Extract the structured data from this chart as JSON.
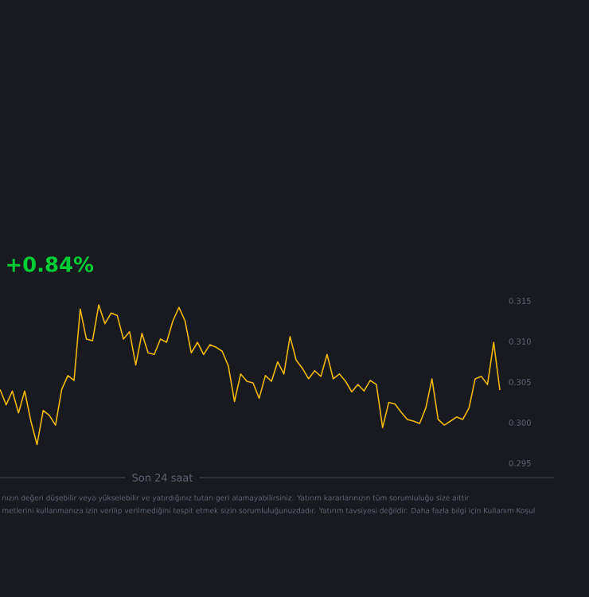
{
  "chart_data": {
    "type": "line",
    "title": "+0.84%",
    "xlabel": "Son 24 saat",
    "annotations": [
      "nızın değeri düşebilir veya yükselebilir ve yatırdığınız tutarı geri alamayabilirsiniz. Yatırım kararlarınızın tüm sorumluluğu size aittir",
      "metlerini kullanmanıza izin verilip verilmediğini tespit etmek sizin sorumluluğunuzdadır. Yatırım tavsiyesi değildir. Daha fazla bilgi için Kullanım Koşul"
    ],
    "categories": [
      null,
      null,
      null,
      null,
      null,
      null,
      null,
      null,
      null,
      null,
      null,
      null,
      null,
      null,
      null,
      null,
      null,
      null,
      null,
      null,
      null,
      null,
      null,
      null,
      null,
      null,
      null,
      null,
      null,
      null,
      null,
      null,
      null,
      null,
      null,
      null,
      null,
      null,
      null,
      null,
      null,
      null,
      null,
      null,
      null,
      null,
      null,
      null,
      null,
      null,
      null,
      null,
      null,
      null,
      null,
      null,
      null,
      null,
      null,
      null,
      null,
      null,
      null,
      null,
      null,
      null,
      null,
      null,
      null,
      null,
      null,
      null,
      null,
      null,
      null,
      null,
      null,
      null,
      null,
      null,
      null,
      null
    ],
    "values": [
      0.3041,
      0.3022,
      0.3039,
      0.3012,
      0.3039,
      0.3002,
      0.2973,
      0.3015,
      0.3009,
      0.2997,
      0.3041,
      0.3058,
      0.3052,
      0.314,
      0.3103,
      0.3101,
      0.3145,
      0.3122,
      0.3135,
      0.3132,
      0.3103,
      0.3112,
      0.3071,
      0.311,
      0.3086,
      0.3084,
      0.3103,
      0.3099,
      0.3125,
      0.3142,
      0.3125,
      0.3086,
      0.3099,
      0.3084,
      0.3096,
      0.3093,
      0.3088,
      0.307,
      0.3026,
      0.306,
      0.3051,
      0.3049,
      0.303,
      0.3058,
      0.3051,
      0.3075,
      0.306,
      0.3106,
      0.3077,
      0.3067,
      0.3054,
      0.3064,
      0.3057,
      0.3084,
      0.3054,
      0.306,
      0.3051,
      0.3038,
      0.3047,
      0.3039,
      0.3052,
      0.3047,
      0.2994,
      0.3025,
      0.3023,
      0.3013,
      0.3004,
      0.3002,
      0.2999,
      0.3018,
      0.3054,
      0.3004,
      0.2997,
      0.3002,
      0.3007,
      0.3004,
      0.3018,
      0.3054,
      0.3057,
      0.3047,
      0.3099,
      0.304
    ],
    "color": "#f0b90b",
    "ylim": [
      0.295,
      0.315
    ],
    "yticks": [
      0.295,
      {
        "value": 0.3,
        "label": "0.300"
      },
      0.305,
      {
        "value": 0.31,
        "label": "0.310"
      },
      0.315
    ],
    "marker": "none",
    "line_style": "solid"
  }
}
